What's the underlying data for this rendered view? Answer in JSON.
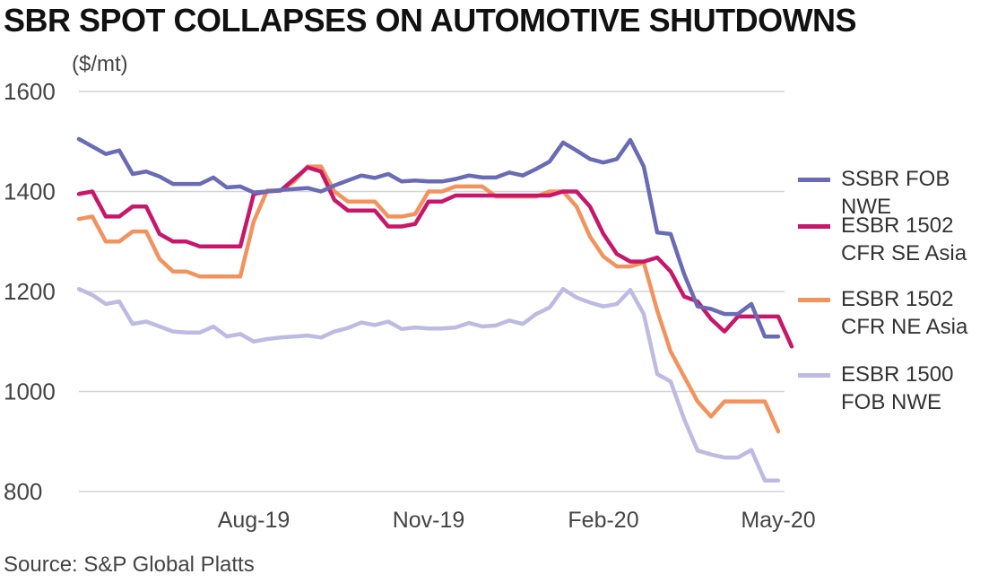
{
  "title": "SBR SPOT COLLAPSES ON AUTOMOTIVE SHUTDOWNS",
  "source": "Source: S&P Global Platts",
  "chart_data": {
    "type": "line",
    "unit_label": "($/mt)",
    "ylim": [
      800,
      1600
    ],
    "yticks": [
      "1600",
      "1400",
      "1200",
      "1000",
      "800"
    ],
    "ytick_values": [
      1600,
      1400,
      1200,
      1000,
      800
    ],
    "xtick_labels": [
      "Aug-19",
      "Nov-19",
      "Feb-20",
      "May-20"
    ],
    "xtick_index": [
      13,
      26,
      39,
      52
    ],
    "grid": true,
    "legend_position": "right",
    "series": [
      {
        "name": "SSBR FOB NWE",
        "color": "#6A6BB5",
        "values": [
          1505,
          1490,
          1475,
          1482,
          1435,
          1440,
          1430,
          1415,
          1415,
          1415,
          1428,
          1408,
          1410,
          1398,
          1400,
          1403,
          1405,
          1407,
          1400,
          1412,
          1422,
          1432,
          1427,
          1435,
          1420,
          1422,
          1420,
          1420,
          1425,
          1432,
          1428,
          1428,
          1438,
          1432,
          1445,
          1460,
          1498,
          1482,
          1465,
          1458,
          1465,
          1503,
          1450,
          1318,
          1315,
          1235,
          1170,
          1165,
          1155,
          1155,
          1175,
          1110,
          1110
        ]
      },
      {
        "name": "ESBR 1502 CFR SE Asia",
        "color": "#C8176A",
        "values": [
          1395,
          1400,
          1350,
          1350,
          1370,
          1370,
          1315,
          1300,
          1300,
          1290,
          1290,
          1290,
          1290,
          1395,
          1400,
          1402,
          1425,
          1448,
          1440,
          1383,
          1362,
          1362,
          1362,
          1330,
          1330,
          1335,
          1380,
          1380,
          1392,
          1392,
          1392,
          1392,
          1392,
          1392,
          1392,
          1392,
          1400,
          1400,
          1370,
          1315,
          1275,
          1260,
          1260,
          1268,
          1240,
          1190,
          1180,
          1145,
          1120,
          1150,
          1150,
          1150,
          1150,
          1090
        ]
      },
      {
        "name": "ESBR 1502 CFR NE Asia",
        "color": "#F2935E",
        "values": [
          1345,
          1350,
          1300,
          1300,
          1320,
          1320,
          1265,
          1240,
          1240,
          1230,
          1230,
          1230,
          1230,
          1340,
          1402,
          1402,
          1420,
          1450,
          1450,
          1400,
          1380,
          1380,
          1380,
          1350,
          1350,
          1355,
          1400,
          1400,
          1410,
          1410,
          1410,
          1390,
          1390,
          1390,
          1390,
          1400,
          1400,
          1370,
          1310,
          1270,
          1250,
          1250,
          1258,
          1162,
          1080,
          1030,
          980,
          950,
          980,
          980,
          980,
          980,
          920
        ]
      },
      {
        "name": "ESBR 1500 FOB NWE",
        "color": "#BDBBE2",
        "values": [
          1205,
          1193,
          1175,
          1180,
          1135,
          1140,
          1130,
          1120,
          1118,
          1118,
          1130,
          1110,
          1115,
          1100,
          1105,
          1108,
          1110,
          1112,
          1108,
          1120,
          1127,
          1138,
          1133,
          1140,
          1125,
          1128,
          1126,
          1126,
          1128,
          1137,
          1130,
          1132,
          1142,
          1135,
          1155,
          1168,
          1205,
          1188,
          1178,
          1170,
          1175,
          1203,
          1155,
          1035,
          1020,
          945,
          882,
          874,
          868,
          868,
          883,
          822,
          822
        ]
      }
    ],
    "legend_labels": [
      "SSBR FOB NWE",
      "ESBR 1502\nCFR SE Asia",
      "ESBR 1502\nCFR NE Asia",
      "ESBR 1500\nFOB NWE"
    ]
  }
}
